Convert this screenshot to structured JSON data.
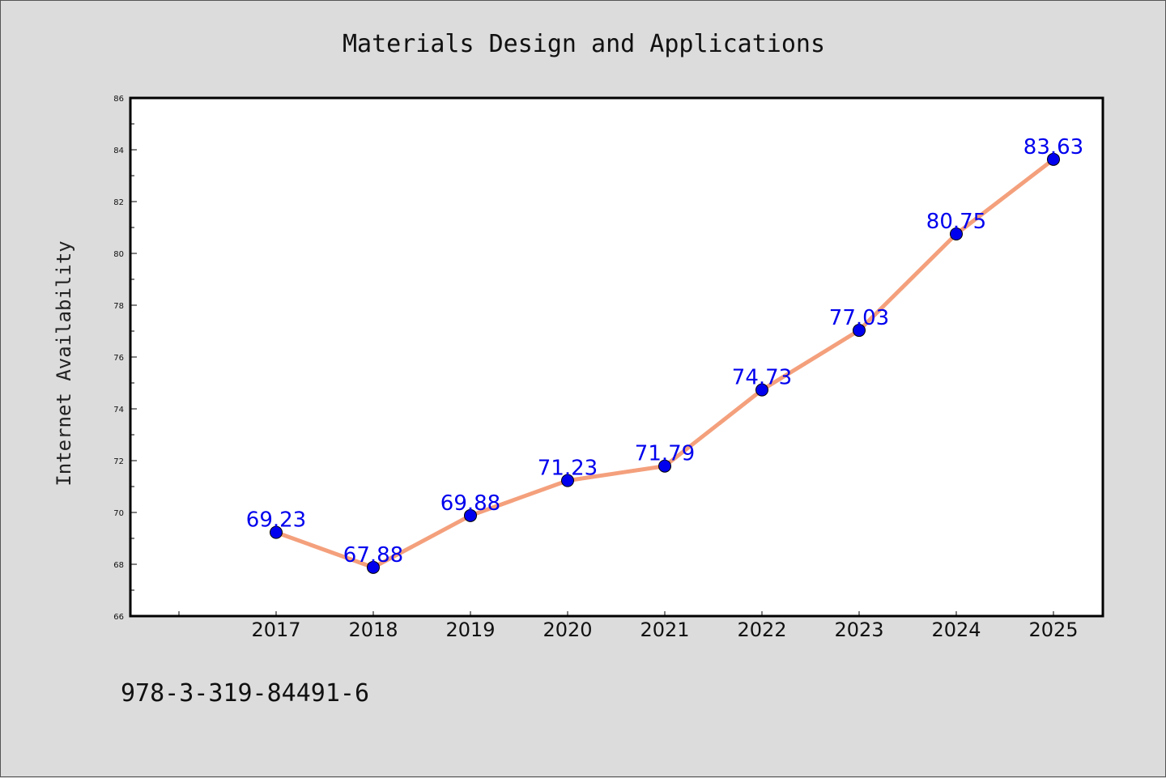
{
  "chart_data": {
    "type": "line",
    "title": "Materials Design and Applications",
    "xlabel": "",
    "ylabel": "Internet Availability",
    "categories": [
      "2017",
      "2018",
      "2019",
      "2020",
      "2021",
      "2022",
      "2023",
      "2024",
      "2025"
    ],
    "series": [
      {
        "values": [
          69.23,
          67.88,
          69.88,
          71.23,
          71.79,
          74.73,
          77.03,
          80.75,
          83.63
        ],
        "labels": [
          "69.23",
          "67.88",
          "69.88",
          "71.23",
          "71.79",
          "74.73",
          "77.03",
          "80.75",
          "83.63"
        ]
      }
    ],
    "ylim": [
      66,
      86
    ],
    "yticks": [
      "66",
      "68",
      "70",
      "72",
      "74",
      "76",
      "78",
      "80",
      "82",
      "84",
      "86"
    ],
    "grid": false,
    "data_labels": true
  },
  "footer": {
    "text": "978-3-319-84491-6"
  },
  "colors": {
    "background": "#dcdcdc",
    "plot_area": "#ffffff",
    "line": "#f4a07c",
    "marker": "#0000ee",
    "data_label": "#0000ee"
  }
}
